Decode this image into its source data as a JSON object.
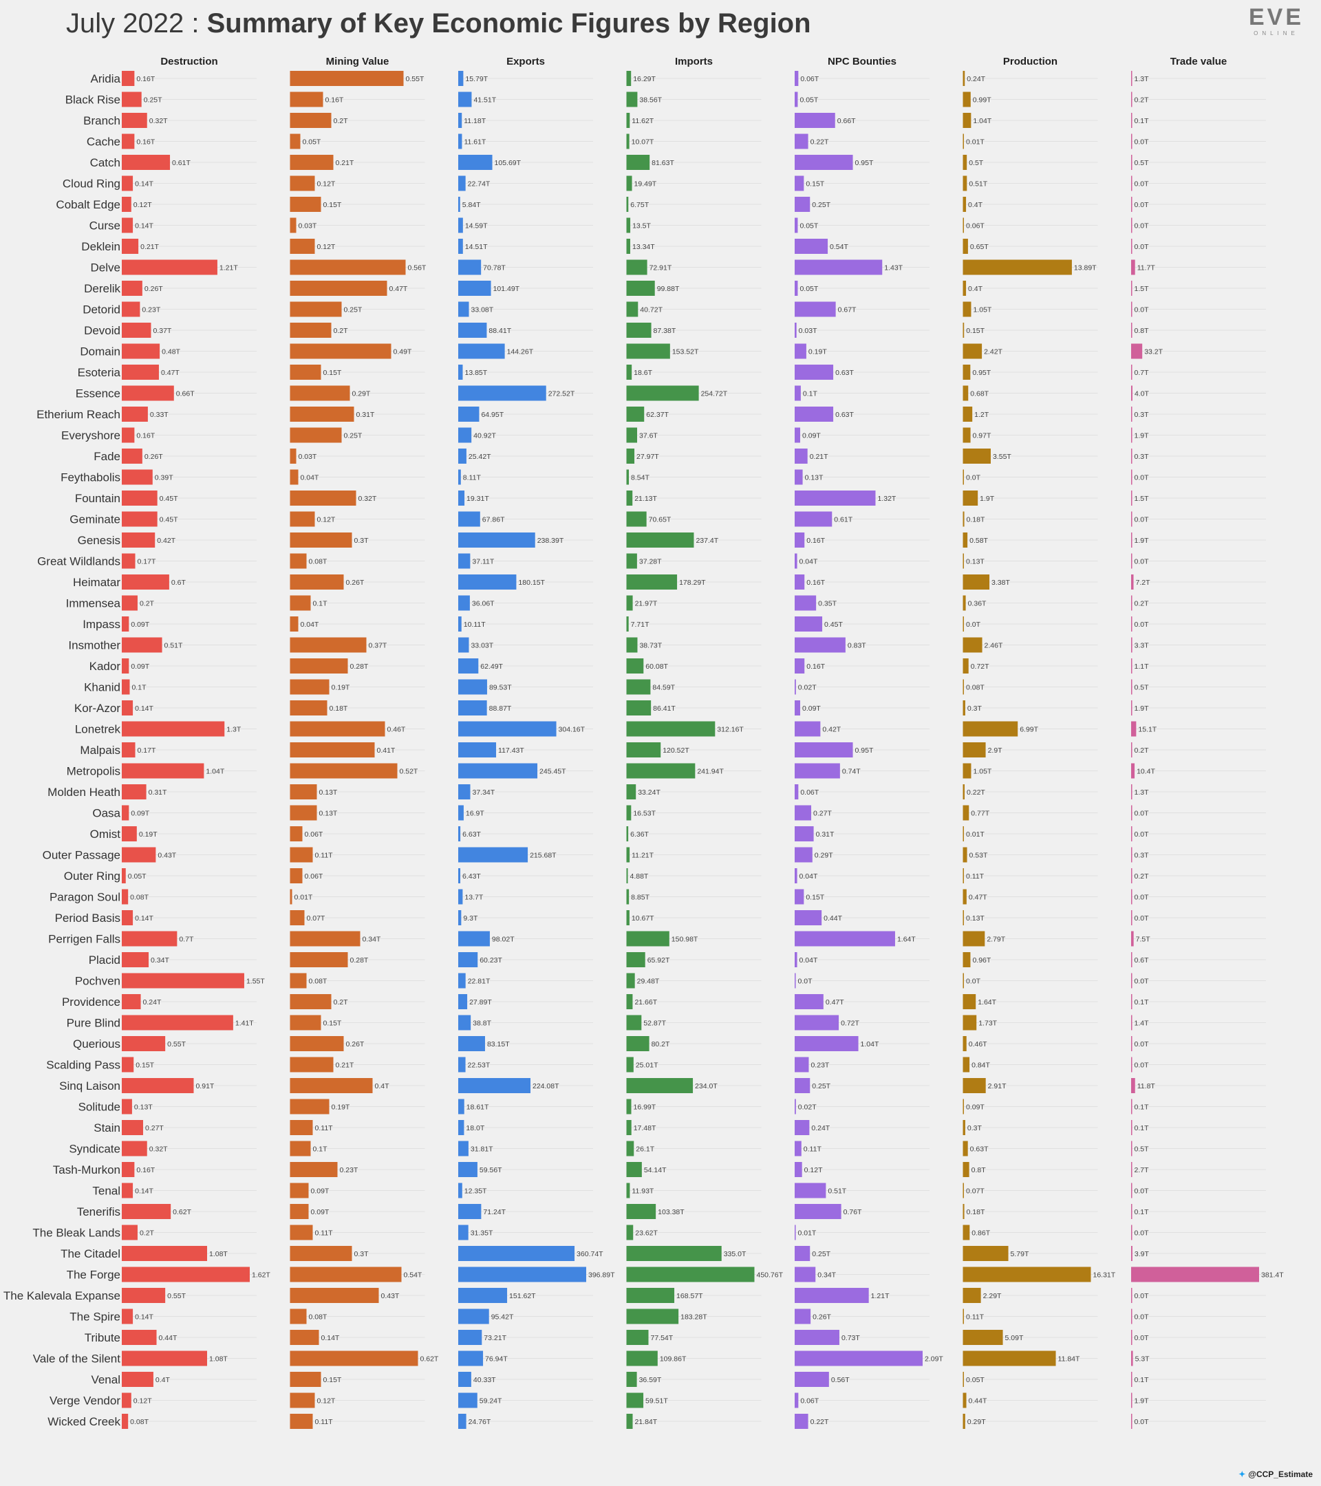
{
  "title": {
    "date": "July 2022",
    "separator": " : ",
    "main": "Summary of Key Economic Figures by Region"
  },
  "logo": {
    "main": "EVE",
    "sub": "ONLINE"
  },
  "footer": {
    "handle": "@CCP_Estimate",
    "icon": "twitter-bird-icon"
  },
  "chart_data": {
    "type": "bar",
    "orientation": "horizontal",
    "unit": "T",
    "categories": [
      "Aridia",
      "Black Rise",
      "Branch",
      "Cache",
      "Catch",
      "Cloud Ring",
      "Cobalt Edge",
      "Curse",
      "Deklein",
      "Delve",
      "Derelik",
      "Detorid",
      "Devoid",
      "Domain",
      "Esoteria",
      "Essence",
      "Etherium Reach",
      "Everyshore",
      "Fade",
      "Feythabolis",
      "Fountain",
      "Geminate",
      "Genesis",
      "Great Wildlands",
      "Heimatar",
      "Immensea",
      "Impass",
      "Insmother",
      "Kador",
      "Khanid",
      "Kor-Azor",
      "Lonetrek",
      "Malpais",
      "Metropolis",
      "Molden Heath",
      "Oasa",
      "Omist",
      "Outer Passage",
      "Outer Ring",
      "Paragon Soul",
      "Period Basis",
      "Perrigen Falls",
      "Placid",
      "Pochven",
      "Providence",
      "Pure Blind",
      "Querious",
      "Scalding Pass",
      "Sinq Laison",
      "Solitude",
      "Stain",
      "Syndicate",
      "Tash-Murkon",
      "Tenal",
      "Tenerifis",
      "The Bleak Lands",
      "The Citadel",
      "The Forge",
      "The Kalevala Expanse",
      "The Spire",
      "Tribute",
      "Vale of the Silent",
      "Venal",
      "Verge Vendor",
      "Wicked Creek"
    ],
    "series": [
      {
        "name": "Destruction",
        "color": "#e8524a",
        "max": 1.62,
        "values": [
          0.16,
          0.25,
          0.32,
          0.16,
          0.61,
          0.14,
          0.12,
          0.14,
          0.21,
          1.21,
          0.26,
          0.23,
          0.37,
          0.48,
          0.47,
          0.66,
          0.33,
          0.16,
          0.26,
          0.39,
          0.45,
          0.45,
          0.42,
          0.17,
          0.6,
          0.2,
          0.09,
          0.51,
          0.09,
          0.1,
          0.14,
          1.3,
          0.17,
          1.04,
          0.31,
          0.09,
          0.19,
          0.43,
          0.05,
          0.08,
          0.14,
          0.7,
          0.34,
          1.55,
          0.24,
          1.41,
          0.55,
          0.15,
          0.91,
          0.13,
          0.27,
          0.32,
          0.16,
          0.14,
          0.62,
          0.2,
          1.08,
          1.62,
          0.55,
          0.14,
          0.44,
          1.08,
          0.4,
          0.12,
          0.08
        ],
        "labels": [
          "0.16T",
          "0.25T",
          "0.32T",
          "0.16T",
          "0.61T",
          "0.14T",
          "0.12T",
          "0.14T",
          "0.21T",
          "1.21T",
          "0.26T",
          "0.23T",
          "0.37T",
          "0.48T",
          "0.47T",
          "0.66T",
          "0.33T",
          "0.16T",
          "0.26T",
          "0.39T",
          "0.45T",
          "0.45T",
          "0.42T",
          "0.17T",
          "0.6T",
          "0.2T",
          "0.09T",
          "0.51T",
          "0.09T",
          "0.1T",
          "0.14T",
          "1.3T",
          "0.17T",
          "1.04T",
          "0.31T",
          "0.09T",
          "0.19T",
          "0.43T",
          "0.05T",
          "0.08T",
          "0.14T",
          "0.7T",
          "0.34T",
          "1.55T",
          "0.24T",
          "1.41T",
          "0.55T",
          "0.15T",
          "0.91T",
          "0.13T",
          "0.27T",
          "0.32T",
          "0.16T",
          "0.14T",
          "0.62T",
          "0.2T",
          "1.08T",
          "1.62T",
          "0.55T",
          "0.14T",
          "0.44T",
          "1.08T",
          "0.4T",
          "0.12T",
          "0.08T"
        ]
      },
      {
        "name": "Mining Value",
        "color": "#d06a2c",
        "max": 0.62,
        "values": [
          0.55,
          0.16,
          0.2,
          0.05,
          0.21,
          0.12,
          0.15,
          0.03,
          0.12,
          0.56,
          0.47,
          0.25,
          0.2,
          0.49,
          0.15,
          0.29,
          0.31,
          0.25,
          0.03,
          0.04,
          0.32,
          0.12,
          0.3,
          0.08,
          0.26,
          0.1,
          0.04,
          0.37,
          0.28,
          0.19,
          0.18,
          0.46,
          0.41,
          0.52,
          0.13,
          0.13,
          0.06,
          0.11,
          0.06,
          0.01,
          0.07,
          0.34,
          0.28,
          0.08,
          0.2,
          0.15,
          0.26,
          0.21,
          0.4,
          0.19,
          0.11,
          0.1,
          0.23,
          0.09,
          0.09,
          0.11,
          0.3,
          0.54,
          0.43,
          0.08,
          0.14,
          0.62,
          0.15,
          0.12,
          0.11
        ],
        "labels": [
          "0.55T",
          "0.16T",
          "0.2T",
          "0.05T",
          "0.21T",
          "0.12T",
          "0.15T",
          "0.03T",
          "0.12T",
          "0.56T",
          "0.47T",
          "0.25T",
          "0.2T",
          "0.49T",
          "0.15T",
          "0.29T",
          "0.31T",
          "0.25T",
          "0.03T",
          "0.04T",
          "0.32T",
          "0.12T",
          "0.3T",
          "0.08T",
          "0.26T",
          "0.1T",
          "0.04T",
          "0.37T",
          "0.28T",
          "0.19T",
          "0.18T",
          "0.46T",
          "0.41T",
          "0.52T",
          "0.13T",
          "0.13T",
          "0.06T",
          "0.11T",
          "0.06T",
          "0.01T",
          "0.07T",
          "0.34T",
          "0.28T",
          "0.08T",
          "0.2T",
          "0.15T",
          "0.26T",
          "0.21T",
          "0.4T",
          "0.19T",
          "0.11T",
          "0.1T",
          "0.23T",
          "0.09T",
          "0.09T",
          "0.11T",
          "0.3T",
          "0.54T",
          "0.43T",
          "0.08T",
          "0.14T",
          "0.62T",
          "0.15T",
          "0.12T",
          "0.11T"
        ]
      },
      {
        "name": "Exports",
        "color": "#4285e0",
        "max": 396.89,
        "values": [
          15.79,
          41.51,
          11.18,
          11.61,
          105.69,
          22.74,
          5.84,
          14.59,
          14.51,
          70.78,
          101.49,
          33.08,
          88.41,
          144.26,
          13.85,
          272.52,
          64.95,
          40.92,
          25.42,
          8.11,
          19.31,
          67.86,
          238.39,
          37.11,
          180.15,
          36.06,
          10.11,
          33.03,
          62.49,
          89.53,
          88.87,
          304.16,
          117.43,
          245.45,
          37.34,
          16.9,
          6.63,
          215.68,
          6.43,
          13.7,
          9.3,
          98.02,
          60.23,
          22.81,
          27.89,
          38.8,
          83.15,
          22.53,
          224.08,
          18.61,
          18.0,
          31.81,
          59.56,
          12.35,
          71.24,
          31.35,
          360.74,
          396.89,
          151.62,
          95.42,
          73.21,
          76.94,
          40.33,
          59.24,
          24.76
        ],
        "labels": [
          "15.79T",
          "41.51T",
          "11.18T",
          "11.61T",
          "105.69T",
          "22.74T",
          "5.84T",
          "14.59T",
          "14.51T",
          "70.78T",
          "101.49T",
          "33.08T",
          "88.41T",
          "144.26T",
          "13.85T",
          "272.52T",
          "64.95T",
          "40.92T",
          "25.42T",
          "8.11T",
          "19.31T",
          "67.86T",
          "238.39T",
          "37.11T",
          "180.15T",
          "36.06T",
          "10.11T",
          "33.03T",
          "62.49T",
          "89.53T",
          "88.87T",
          "304.16T",
          "117.43T",
          "245.45T",
          "37.34T",
          "16.9T",
          "6.63T",
          "215.68T",
          "6.43T",
          "13.7T",
          "9.3T",
          "98.02T",
          "60.23T",
          "22.81T",
          "27.89T",
          "38.8T",
          "83.15T",
          "22.53T",
          "224.08T",
          "18.61T",
          "18.0T",
          "31.81T",
          "59.56T",
          "12.35T",
          "71.24T",
          "31.35T",
          "360.74T",
          "396.89T",
          "151.62T",
          "95.42T",
          "73.21T",
          "76.94T",
          "40.33T",
          "59.24T",
          "24.76T"
        ]
      },
      {
        "name": "Imports",
        "color": "#45944a",
        "max": 450.76,
        "values": [
          16.29,
          38.56,
          11.62,
          10.07,
          81.63,
          19.49,
          6.75,
          13.5,
          13.34,
          72.91,
          99.88,
          40.72,
          87.38,
          153.52,
          18.6,
          254.72,
          62.37,
          37.6,
          27.97,
          8.54,
          21.13,
          70.65,
          237.4,
          37.28,
          178.29,
          21.97,
          7.71,
          38.73,
          60.08,
          84.59,
          86.41,
          312.16,
          120.52,
          241.94,
          33.24,
          16.53,
          6.36,
          11.21,
          4.88,
          8.85,
          10.67,
          150.98,
          65.92,
          29.48,
          21.66,
          52.87,
          80.2,
          25.01,
          234.0,
          16.99,
          17.48,
          26.1,
          54.14,
          11.93,
          103.38,
          23.62,
          335.0,
          450.76,
          168.57,
          183.28,
          77.54,
          109.86,
          36.59,
          59.51,
          21.84
        ],
        "labels": [
          "16.29T",
          "38.56T",
          "11.62T",
          "10.07T",
          "81.63T",
          "19.49T",
          "6.75T",
          "13.5T",
          "13.34T",
          "72.91T",
          "99.88T",
          "40.72T",
          "87.38T",
          "153.52T",
          "18.6T",
          "254.72T",
          "62.37T",
          "37.6T",
          "27.97T",
          "8.54T",
          "21.13T",
          "70.65T",
          "237.4T",
          "37.28T",
          "178.29T",
          "21.97T",
          "7.71T",
          "38.73T",
          "60.08T",
          "84.59T",
          "86.41T",
          "312.16T",
          "120.52T",
          "241.94T",
          "33.24T",
          "16.53T",
          "6.36T",
          "11.21T",
          "4.88T",
          "8.85T",
          "10.67T",
          "150.98T",
          "65.92T",
          "29.48T",
          "21.66T",
          "52.87T",
          "80.2T",
          "25.01T",
          "234.0T",
          "16.99T",
          "17.48T",
          "26.1T",
          "54.14T",
          "11.93T",
          "103.38T",
          "23.62T",
          "335.0T",
          "450.76T",
          "168.57T",
          "183.28T",
          "77.54T",
          "109.86T",
          "36.59T",
          "59.51T",
          "21.84T"
        ]
      },
      {
        "name": "NPC Bounties",
        "color": "#9b6be0",
        "max": 2.09,
        "values": [
          0.06,
          0.05,
          0.66,
          0.22,
          0.95,
          0.15,
          0.25,
          0.05,
          0.54,
          1.43,
          0.05,
          0.67,
          0.03,
          0.19,
          0.63,
          0.1,
          0.63,
          0.09,
          0.21,
          0.13,
          1.32,
          0.61,
          0.16,
          0.04,
          0.16,
          0.35,
          0.45,
          0.83,
          0.16,
          0.02,
          0.09,
          0.42,
          0.95,
          0.74,
          0.06,
          0.27,
          0.31,
          0.29,
          0.04,
          0.15,
          0.44,
          1.64,
          0.04,
          0.0,
          0.47,
          0.72,
          1.04,
          0.23,
          0.25,
          0.02,
          0.24,
          0.11,
          0.12,
          0.51,
          0.76,
          0.01,
          0.25,
          0.34,
          1.21,
          0.26,
          0.73,
          2.09,
          0.56,
          0.06,
          0.22
        ],
        "labels": [
          "0.06T",
          "0.05T",
          "0.66T",
          "0.22T",
          "0.95T",
          "0.15T",
          "0.25T",
          "0.05T",
          "0.54T",
          "1.43T",
          "0.05T",
          "0.67T",
          "0.03T",
          "0.19T",
          "0.63T",
          "0.1T",
          "0.63T",
          "0.09T",
          "0.21T",
          "0.13T",
          "1.32T",
          "0.61T",
          "0.16T",
          "0.04T",
          "0.16T",
          "0.35T",
          "0.45T",
          "0.83T",
          "0.16T",
          "0.02T",
          "0.09T",
          "0.42T",
          "0.95T",
          "0.74T",
          "0.06T",
          "0.27T",
          "0.31T",
          "0.29T",
          "0.04T",
          "0.15T",
          "0.44T",
          "1.64T",
          "0.04T",
          "0.0T",
          "0.47T",
          "0.72T",
          "1.04T",
          "0.23T",
          "0.25T",
          "0.02T",
          "0.24T",
          "0.11T",
          "0.12T",
          "0.51T",
          "0.76T",
          "0.01T",
          "0.25T",
          "0.34T",
          "1.21T",
          "0.26T",
          "0.73T",
          "2.09T",
          "0.56T",
          "0.06T",
          "0.22T"
        ]
      },
      {
        "name": "Production",
        "color": "#b07c14",
        "max": 16.31,
        "values": [
          0.24,
          0.99,
          1.04,
          0.01,
          0.5,
          0.51,
          0.4,
          0.06,
          0.65,
          13.89,
          0.4,
          1.05,
          0.15,
          2.42,
          0.95,
          0.68,
          1.2,
          0.97,
          3.55,
          0.0,
          1.9,
          0.18,
          0.58,
          0.13,
          3.38,
          0.36,
          0.0,
          2.46,
          0.72,
          0.08,
          0.3,
          6.99,
          2.9,
          1.05,
          0.22,
          0.77,
          0.01,
          0.53,
          0.11,
          0.47,
          0.13,
          2.79,
          0.96,
          0.0,
          1.64,
          1.73,
          0.46,
          0.84,
          2.91,
          0.09,
          0.3,
          0.63,
          0.8,
          0.07,
          0.18,
          0.86,
          5.79,
          16.31,
          2.29,
          0.11,
          5.09,
          11.84,
          0.05,
          0.44,
          0.29
        ],
        "labels": [
          "0.24T",
          "0.99T",
          "1.04T",
          "0.01T",
          "0.5T",
          "0.51T",
          "0.4T",
          "0.06T",
          "0.65T",
          "13.89T",
          "0.4T",
          "1.05T",
          "0.15T",
          "2.42T",
          "0.95T",
          "0.68T",
          "1.2T",
          "0.97T",
          "3.55T",
          "0.0T",
          "1.9T",
          "0.18T",
          "0.58T",
          "0.13T",
          "3.38T",
          "0.36T",
          "0.0T",
          "2.46T",
          "0.72T",
          "0.08T",
          "0.3T",
          "6.99T",
          "2.9T",
          "1.05T",
          "0.22T",
          "0.77T",
          "0.01T",
          "0.53T",
          "0.11T",
          "0.47T",
          "0.13T",
          "2.79T",
          "0.96T",
          "0.0T",
          "1.64T",
          "1.73T",
          "0.46T",
          "0.84T",
          "2.91T",
          "0.09T",
          "0.3T",
          "0.63T",
          "0.8T",
          "0.07T",
          "0.18T",
          "0.86T",
          "5.79T",
          "16.31T",
          "2.29T",
          "0.11T",
          "5.09T",
          "11.84T",
          "0.05T",
          "0.44T",
          "0.29T"
        ]
      },
      {
        "name": "Trade value",
        "color": "#d0609a",
        "max": 381.4,
        "values": [
          1.3,
          0.2,
          0.1,
          0.0,
          0.5,
          0.0,
          0.0,
          0.0,
          0.0,
          11.7,
          1.5,
          0.0,
          0.8,
          33.2,
          0.7,
          4.0,
          0.3,
          1.9,
          0.3,
          0.0,
          1.5,
          0.0,
          1.9,
          0.0,
          7.2,
          0.2,
          0.0,
          3.3,
          1.1,
          0.5,
          1.9,
          15.1,
          0.2,
          10.4,
          1.3,
          0.0,
          0.0,
          0.3,
          0.2,
          0.0,
          0.0,
          7.5,
          0.6,
          0.0,
          0.1,
          1.4,
          0.0,
          0.0,
          11.8,
          0.1,
          0.1,
          0.5,
          2.7,
          0.0,
          0.1,
          0.0,
          3.9,
          381.4,
          0.0,
          0.0,
          0.0,
          5.3,
          0.1,
          1.9,
          0.0
        ],
        "labels": [
          "1.3T",
          "0.2T",
          "0.1T",
          "0.0T",
          "0.5T",
          "0.0T",
          "0.0T",
          "0.0T",
          "0.0T",
          "11.7T",
          "1.5T",
          "0.0T",
          "0.8T",
          "33.2T",
          "0.7T",
          "4.0T",
          "0.3T",
          "1.9T",
          "0.3T",
          "0.0T",
          "1.5T",
          "0.0T",
          "1.9T",
          "0.0T",
          "7.2T",
          "0.2T",
          "0.0T",
          "3.3T",
          "1.1T",
          "0.5T",
          "1.9T",
          "15.1T",
          "0.2T",
          "10.4T",
          "1.3T",
          "0.0T",
          "0.0T",
          "0.3T",
          "0.2T",
          "0.0T",
          "0.0T",
          "7.5T",
          "0.6T",
          "0.0T",
          "0.1T",
          "1.4T",
          "0.0T",
          "0.0T",
          "11.8T",
          "0.1T",
          "0.1T",
          "0.5T",
          "2.7T",
          "0.0T",
          "0.1T",
          "0.0T",
          "3.9T",
          "381.4T",
          "0.0T",
          "0.0T",
          "0.0T",
          "5.3T",
          "0.1T",
          "1.9T",
          "0.0T"
        ]
      }
    ]
  }
}
